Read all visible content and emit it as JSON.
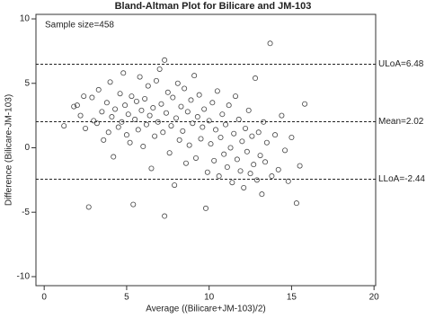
{
  "chart_data": {
    "type": "scatter",
    "title": "Bland-Altman Plot for Bilicare and JM-103",
    "x_label": "Average ((Bilicare+JM-103)/2)",
    "y_label": "Difference (Bilicare-JM-103)",
    "annotation": "Sample size=458",
    "color": "#444444",
    "xlim": [
      -0.5,
      20.1
    ],
    "xticks": [
      0,
      5,
      10,
      15,
      20
    ],
    "ylim": [
      -10.7,
      10.35
    ],
    "yticks": [
      -10,
      -5,
      0,
      5,
      10
    ],
    "ref_lines": [
      {
        "value": 6.48,
        "label": "ULoA=6.48"
      },
      {
        "value": 2.02,
        "label": "Mean=2.02"
      },
      {
        "value": -2.44,
        "label": "LLoA=-2.44"
      }
    ],
    "x": [
      1.2,
      1.8,
      2.0,
      2.2,
      2.4,
      2.5,
      2.7,
      2.9,
      3.0,
      3.2,
      3.3,
      3.5,
      3.6,
      3.8,
      3.9,
      4.0,
      4.1,
      4.2,
      4.3,
      4.5,
      4.6,
      4.7,
      4.8,
      4.9,
      5.0,
      5.1,
      5.2,
      5.3,
      5.4,
      5.5,
      5.6,
      5.7,
      5.8,
      5.9,
      6.0,
      6.1,
      6.2,
      6.3,
      6.4,
      6.5,
      6.6,
      6.7,
      6.8,
      6.9,
      7.0,
      7.1,
      7.2,
      7.3,
      7.3,
      7.4,
      7.5,
      7.6,
      7.7,
      7.8,
      7.9,
      8.0,
      8.1,
      8.2,
      8.3,
      8.4,
      8.5,
      8.6,
      8.7,
      8.8,
      8.9,
      9.0,
      9.1,
      9.2,
      9.3,
      9.4,
      9.5,
      9.6,
      9.7,
      9.8,
      9.9,
      10.0,
      10.1,
      10.2,
      10.3,
      10.4,
      10.5,
      10.6,
      10.7,
      10.8,
      10.9,
      11.0,
      11.1,
      11.2,
      11.3,
      11.4,
      11.5,
      11.6,
      11.7,
      11.8,
      11.9,
      12.0,
      12.1,
      12.2,
      12.3,
      12.4,
      12.5,
      12.6,
      12.7,
      12.8,
      12.9,
      13.0,
      13.1,
      13.2,
      13.3,
      13.4,
      13.5,
      13.7,
      13.8,
      14.0,
      14.2,
      14.4,
      14.6,
      14.8,
      15.0,
      15.3,
      15.5,
      15.8
    ],
    "y": [
      1.7,
      3.2,
      3.3,
      2.5,
      4.0,
      1.5,
      -4.6,
      3.9,
      2.1,
      1.9,
      4.5,
      2.8,
      0.6,
      3.5,
      1.2,
      5.1,
      2.4,
      -0.7,
      3.0,
      1.6,
      4.2,
      2.0,
      5.8,
      3.3,
      1.0,
      2.6,
      0.4,
      4.0,
      -4.4,
      2.2,
      3.6,
      1.4,
      5.5,
      2.9,
      0.1,
      3.8,
      1.8,
      4.8,
      2.5,
      -1.6,
      3.1,
      0.9,
      5.2,
      2.0,
      6.1,
      3.4,
      1.2,
      6.8,
      -5.3,
      2.7,
      4.3,
      -0.4,
      1.7,
      3.9,
      -2.9,
      2.3,
      5.0,
      0.6,
      3.2,
      1.3,
      4.6,
      -1.2,
      2.8,
      0.2,
      3.7,
      1.9,
      5.6,
      -0.8,
      2.4,
      4.1,
      0.7,
      1.6,
      3.0,
      -4.7,
      -1.9,
      2.1,
      0.3,
      3.5,
      -1.0,
      1.4,
      4.4,
      -2.2,
      0.8,
      2.6,
      -0.5,
      1.8,
      -1.5,
      3.3,
      0.0,
      -2.7,
      1.1,
      4.0,
      -0.9,
      2.2,
      -1.8,
      0.5,
      -3.1,
      1.5,
      -0.3,
      2.9,
      -2.0,
      0.9,
      -1.3,
      5.4,
      -2.5,
      1.2,
      -0.6,
      -3.6,
      2.0,
      -1.1,
      0.4,
      8.1,
      -2.2,
      1.0,
      -1.7,
      2.5,
      -0.2,
      -2.6,
      0.8,
      -4.3,
      -1.4,
      3.4
    ]
  }
}
